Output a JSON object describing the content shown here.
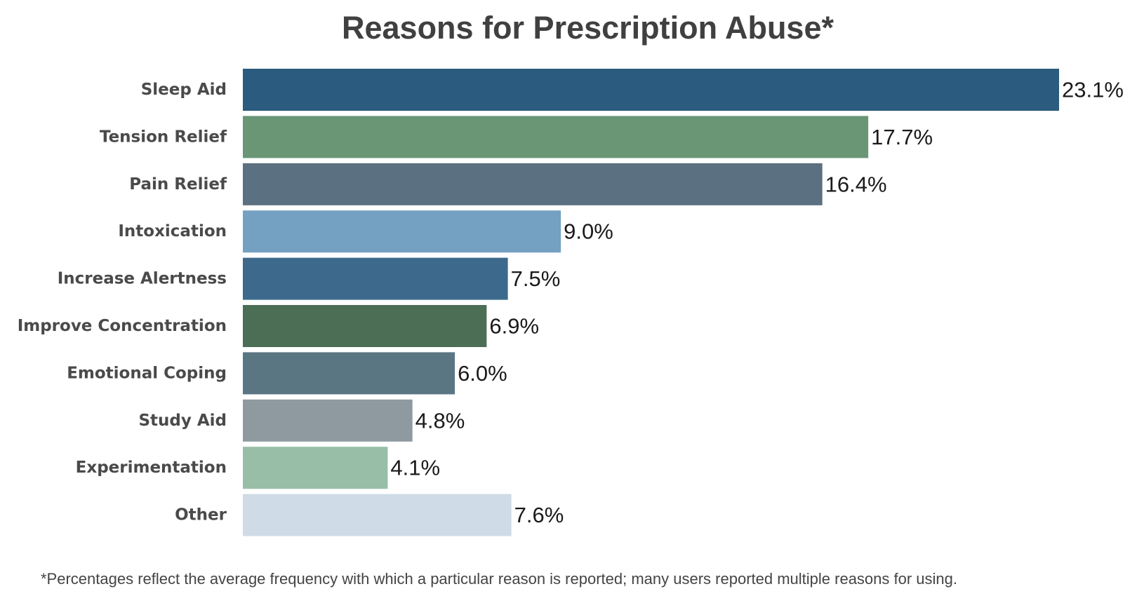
{
  "chart_data": {
    "type": "bar",
    "orientation": "horizontal",
    "title": "Reasons for Prescription Abuse*",
    "xlabel": "",
    "ylabel": "",
    "categories": [
      "Sleep Aid",
      "Tension Relief",
      "Pain Relief",
      "Intoxication",
      "Increase Alertness",
      "Improve Concentration",
      "Emotional Coping",
      "Study Aid",
      "Experimentation",
      "Other"
    ],
    "values": [
      23.1,
      17.7,
      16.4,
      9.0,
      7.5,
      6.9,
      6.0,
      4.8,
      4.1,
      7.6
    ],
    "value_labels": [
      "23.1%",
      "17.7%",
      "16.4%",
      "9.0%",
      "7.5%",
      "6.9%",
      "6.0%",
      "4.8%",
      "4.1%",
      "7.6%"
    ],
    "colors": [
      "#2b5b7e",
      "#6a9676",
      "#5b7080",
      "#74a1c2",
      "#3d6a8c",
      "#4b6e55",
      "#5b7683",
      "#8e9aa0",
      "#98bea8",
      "#cfdbe6"
    ],
    "xlim": [
      0,
      23.1
    ],
    "grid": false,
    "legend": "none",
    "footnote": "*Percentages reflect the average frequency with which a particular reason is reported; many users reported multiple reasons for using."
  }
}
